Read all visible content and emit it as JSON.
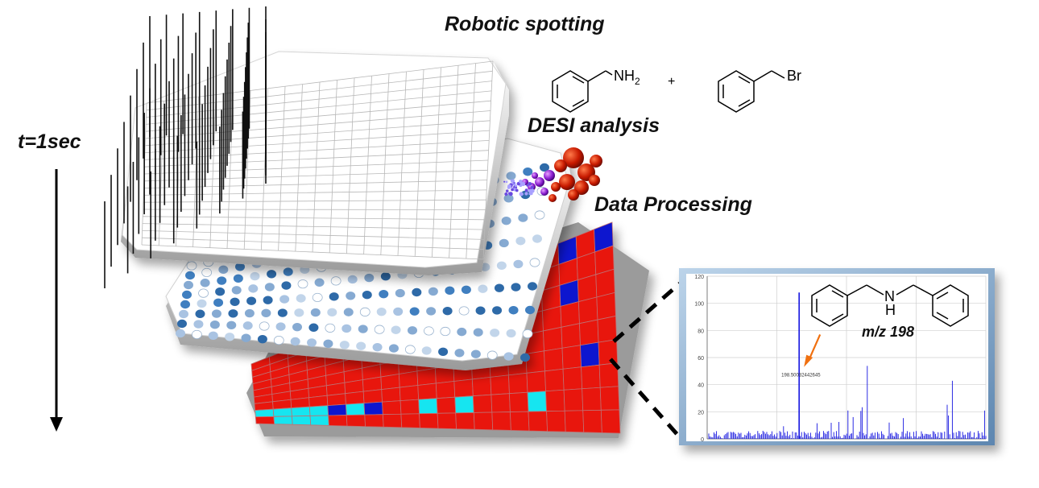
{
  "labels": {
    "robotic_spotting": "Robotic spotting",
    "desi_analysis": "DESI analysis",
    "data_processing": "Data Processing",
    "time": "t=1sec"
  },
  "reaction": {
    "reactant1_group": "NH",
    "reactant1_sub": "2",
    "plus": "+",
    "reactant2_group": "Br"
  },
  "spectrum": {
    "product_n": "N",
    "product_h": "H",
    "mz_label": "m/z 198",
    "peak_label": "198.50032442645",
    "y_ticks": [
      "0",
      "20",
      "40",
      "60",
      "80",
      "100",
      "120"
    ],
    "y_range": [
      0,
      120
    ],
    "peak_value": 108,
    "peak_position": 0.33
  },
  "colors": {
    "hit_red": "#e8120f",
    "cyan": "#19e5f0",
    "blue": "#0a14cf",
    "spectrum_blue": "#1515e0",
    "arrow_orange": "#f07010"
  }
}
